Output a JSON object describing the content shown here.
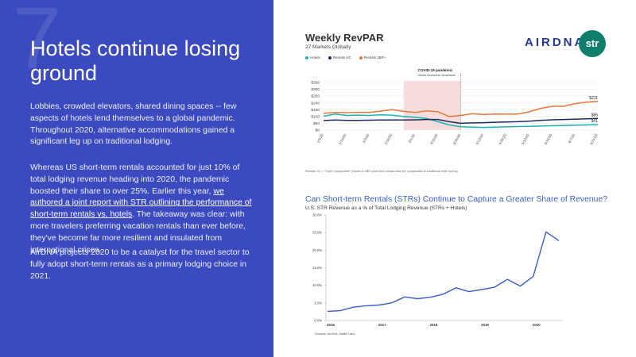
{
  "left": {
    "big_number": "7",
    "headline": "Hotels continue losing ground",
    "paragraph1": "Lobbies, crowded elevators, shared dining spaces -- few aspects of hotels lend themselves to a global pandemic. Throughout 2020, alternative accommodations gained a significant leg up on traditional lodging.",
    "paragraph2_before": "Whereas US short-term rentals accounted for just 10% of total lodging revenue heading into 2020, the pandemic boosted their share to over 25%. Earlier this year, ",
    "paragraph2_link": "we authored a joint report with STR outlining the performance of short-term rentals vs. hotels",
    "paragraph2_after": ". The takeaway was clear: with more travelers preferring vacation rentals than ever before, they've become far more resilient and insulated from international crises.",
    "paragraph3": "AirDNA projects 2020 to be a catalyst for the travel sector to fully adopt short-term rentals as a primary lodging choice in 2021."
  },
  "logos": {
    "airdna": "AIRDNA",
    "str": "str"
  },
  "chart1": {
    "title": "Weekly RevPAR",
    "subtitle": "27 Markets Globally",
    "legend": [
      {
        "label": "Hotels",
        "color": "#1ab2b0"
      },
      {
        "label": "Rentals HC",
        "color": "#1f2a5e"
      },
      {
        "label": "Rentals 2BR+",
        "color": "#e8763a"
      }
    ],
    "annotation_title": "COVID-19 pandemic",
    "annotation_sub": "drives economic slowdown",
    "note": "Rentals HC = \"Hotel Comparable\" (Studio & 1BR short-term rentals that are comparable to traditional hotel rooms)"
  },
  "chart2": {
    "title": "Can Short-term Rentals (STRs) Continue to Capture a Greater Share of Revenue?",
    "subtitle": "U.S. STR Revenue as a % of Total Lodging Revenue (STRs + Hotels)",
    "source": "Sources: AirDNA, Kalibri Labs"
  },
  "chart_data": [
    {
      "type": "line",
      "title": "Weekly RevPAR",
      "subtitle": "27 Markets Globally",
      "x": [
        "1/5/20",
        "1/12/20",
        "1/19/20",
        "1/26/20",
        "2/2/20",
        "2/9/20",
        "2/16/20",
        "2/23/20",
        "3/1/20",
        "3/8/20",
        "3/15/20",
        "3/22/20",
        "3/29/20",
        "4/5/20",
        "4/12/20",
        "4/19/20",
        "4/26/20",
        "5/3/20",
        "5/10/20",
        "5/17/20",
        "5/24/20",
        "5/31/20",
        "6/7/20",
        "6/14/20",
        "6/21/20"
      ],
      "x_tick_labels": [
        "1/5/20",
        "1/19/20",
        "2/2/20",
        "2/16/20",
        "3/1/20",
        "3/15/20",
        "3/29/20",
        "4/12/20",
        "4/26/20",
        "5/10/20",
        "5/24/20",
        "6/7/20",
        "6/21/20"
      ],
      "ylim": [
        0,
        350
      ],
      "y_ticks": [
        "$0",
        "$50",
        "$100",
        "$150",
        "$200",
        "$250",
        "$300",
        "$350"
      ],
      "shaded_x_range": [
        "2/23/20",
        "3/29/20"
      ],
      "series": [
        {
          "name": "Hotels",
          "color": "#1ab2b0",
          "values": [
            102,
            118,
            108,
            110,
            108,
            112,
            110,
            100,
            95,
            85,
            62,
            38,
            25,
            22,
            20,
            22,
            24,
            26,
            28,
            30,
            32,
            34,
            36,
            38,
            41
          ],
          "end_label": "$41"
        },
        {
          "name": "Rentals HC",
          "color": "#1f2a5e",
          "values": [
            70,
            74,
            72,
            72,
            73,
            74,
            74,
            74,
            75,
            78,
            78,
            62,
            50,
            53,
            55,
            58,
            60,
            62,
            66,
            72,
            76,
            78,
            80,
            83,
            86
          ],
          "end_label": "$86"
        },
        {
          "name": "Rentals 2BR+",
          "color": "#e8763a",
          "values": [
            123,
            130,
            128,
            130,
            130,
            140,
            150,
            138,
            130,
            142,
            135,
            100,
            108,
            120,
            115,
            118,
            117,
            118,
            135,
            160,
            175,
            175,
            195,
            206,
            211
          ],
          "end_label": "$211"
        }
      ]
    },
    {
      "type": "line",
      "title": "Can Short-term Rentals (STRs) Continue to Capture a Greater Share of Revenue?",
      "subtitle": "U.S. STR Revenue as a % of Total Lodging Revenue (STRs + Hotels)",
      "x_tick_labels": [
        "2016",
        "2017",
        "2018",
        "2019",
        "2020"
      ],
      "ylim": [
        0,
        30
      ],
      "y_ticks": [
        "0.0%",
        "5.0%",
        "10.0%",
        "15.0%",
        "20.0%",
        "25.0%",
        "30.0%"
      ],
      "x": [
        2016.0,
        2016.25,
        2016.5,
        2016.75,
        2017.0,
        2017.25,
        2017.5,
        2017.75,
        2018.0,
        2018.25,
        2018.5,
        2018.75,
        2019.0,
        2019.25,
        2019.5,
        2019.75,
        2020.0,
        2020.25,
        2020.5
      ],
      "series": [
        {
          "name": "",
          "color": "#3a5ec9",
          "values": [
            2.6,
            2.8,
            3.8,
            4.2,
            4.4,
            5.0,
            6.7,
            6.2,
            6.6,
            7.5,
            9.3,
            8.2,
            8.8,
            9.5,
            11.7,
            9.8,
            12.5,
            25.2,
            22.7
          ]
        }
      ]
    }
  ]
}
